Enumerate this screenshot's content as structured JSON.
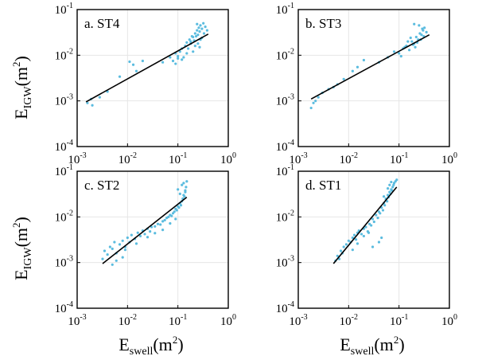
{
  "colors": {
    "points": "#5bbcdf",
    "fit_line": "#000000",
    "grid": "#e6e6e6",
    "frame": "#000000"
  },
  "axes": {
    "x_label": {
      "main": "E",
      "sub": "swell",
      "unit_open": "(m",
      "unit_sup": "2",
      "unit_close": ")"
    },
    "y_label": {
      "main": "E",
      "sub": "IGW",
      "unit_open": "(m",
      "unit_sup": "2",
      "unit_close": ")"
    },
    "x_ticks": [
      {
        "value": 0.001,
        "base": "10",
        "exp": "-3"
      },
      {
        "value": 0.01,
        "base": "10",
        "exp": "-2"
      },
      {
        "value": 0.1,
        "base": "10",
        "exp": "-1"
      },
      {
        "value": 1,
        "base": "10",
        "exp": "0"
      }
    ],
    "y_ticks": [
      {
        "value": 0.0001,
        "base": "10",
        "exp": "-4"
      },
      {
        "value": 0.001,
        "base": "10",
        "exp": "-3"
      },
      {
        "value": 0.01,
        "base": "10",
        "exp": "-2"
      },
      {
        "value": 0.1,
        "base": "10",
        "exp": "-1"
      }
    ]
  },
  "chart_data": [
    {
      "type": "scatter",
      "panel_label": "a. ST4",
      "xscale": "log",
      "yscale": "log",
      "xlim": [
        0.001,
        1
      ],
      "ylim": [
        0.0001,
        0.1
      ],
      "grid": true,
      "points": {
        "x": [
          0.0016,
          0.0019,
          0.002,
          0.0028,
          0.004,
          0.007,
          0.011,
          0.015,
          0.013,
          0.02,
          0.05,
          0.07,
          0.08,
          0.09,
          0.1,
          0.11,
          0.12,
          0.13,
          0.14,
          0.15,
          0.16,
          0.17,
          0.18,
          0.2,
          0.21,
          0.22,
          0.23,
          0.24,
          0.25,
          0.26,
          0.27,
          0.28,
          0.3,
          0.32,
          0.35,
          0.38,
          0.25,
          0.2,
          0.18,
          0.3,
          0.15,
          0.1,
          0.09,
          0.12,
          0.22,
          0.28,
          0.33,
          0.27,
          0.19,
          0.24
        ],
        "y": [
          0.0009,
          0.0011,
          0.0008,
          0.0012,
          0.0016,
          0.0034,
          0.0072,
          0.0045,
          0.0062,
          0.0075,
          0.007,
          0.009,
          0.0075,
          0.011,
          0.0095,
          0.012,
          0.014,
          0.009,
          0.016,
          0.019,
          0.014,
          0.022,
          0.018,
          0.025,
          0.021,
          0.03,
          0.026,
          0.035,
          0.028,
          0.04,
          0.033,
          0.045,
          0.038,
          0.05,
          0.042,
          0.035,
          0.018,
          0.012,
          0.02,
          0.024,
          0.011,
          0.0085,
          0.0065,
          0.008,
          0.016,
          0.022,
          0.03,
          0.015,
          0.026,
          0.048
        ]
      },
      "fit_line": {
        "x": [
          0.0015,
          0.4
        ],
        "y": [
          0.00095,
          0.029
        ]
      }
    },
    {
      "type": "scatter",
      "panel_label": "b. ST3",
      "xscale": "log",
      "yscale": "log",
      "xlim": [
        0.001,
        1
      ],
      "ylim": [
        0.0001,
        0.1
      ],
      "grid": true,
      "points": {
        "x": [
          0.0018,
          0.002,
          0.0022,
          0.0025,
          0.003,
          0.004,
          0.005,
          0.006,
          0.008,
          0.012,
          0.015,
          0.02,
          0.04,
          0.06,
          0.08,
          0.1,
          0.12,
          0.14,
          0.16,
          0.18,
          0.2,
          0.22,
          0.24,
          0.26,
          0.28,
          0.3,
          0.32,
          0.35,
          0.25,
          0.2,
          0.15,
          0.11,
          0.13,
          0.17,
          0.19,
          0.23,
          0.27,
          0.29,
          0.31,
          0.21
        ],
        "y": [
          0.0007,
          0.0009,
          0.001,
          0.0012,
          0.0015,
          0.0018,
          0.002,
          0.0023,
          0.003,
          0.0045,
          0.0055,
          0.0078,
          0.007,
          0.009,
          0.012,
          0.011,
          0.014,
          0.016,
          0.013,
          0.02,
          0.018,
          0.025,
          0.022,
          0.03,
          0.028,
          0.035,
          0.04,
          0.032,
          0.045,
          0.048,
          0.02,
          0.0095,
          0.015,
          0.024,
          0.017,
          0.019,
          0.022,
          0.038,
          0.026,
          0.015
        ]
      },
      "fit_line": {
        "x": [
          0.0018,
          0.4
        ],
        "y": [
          0.0011,
          0.028
        ]
      }
    },
    {
      "type": "scatter",
      "panel_label": "c. ST2",
      "xscale": "log",
      "yscale": "log",
      "xlim": [
        0.001,
        1
      ],
      "ylim": [
        0.0001,
        0.1
      ],
      "grid": true,
      "points": {
        "x": [
          0.0032,
          0.0035,
          0.004,
          0.0045,
          0.005,
          0.0055,
          0.006,
          0.007,
          0.008,
          0.009,
          0.01,
          0.011,
          0.012,
          0.014,
          0.016,
          0.018,
          0.02,
          0.022,
          0.025,
          0.028,
          0.03,
          0.035,
          0.04,
          0.045,
          0.05,
          0.055,
          0.06,
          0.065,
          0.07,
          0.075,
          0.08,
          0.085,
          0.09,
          0.095,
          0.1,
          0.105,
          0.11,
          0.115,
          0.12,
          0.125,
          0.13,
          0.135,
          0.14,
          0.145,
          0.15,
          0.1,
          0.12,
          0.13,
          0.11,
          0.14,
          0.006,
          0.009,
          0.015,
          0.025,
          0.035,
          0.05,
          0.07,
          0.09,
          0.005,
          0.008
        ],
        "y": [
          0.0012,
          0.0018,
          0.0015,
          0.0022,
          0.002,
          0.0028,
          0.0016,
          0.0025,
          0.003,
          0.0022,
          0.0035,
          0.0028,
          0.004,
          0.0033,
          0.0045,
          0.0038,
          0.005,
          0.0042,
          0.0055,
          0.0048,
          0.006,
          0.0062,
          0.007,
          0.0068,
          0.008,
          0.0085,
          0.0095,
          0.01,
          0.011,
          0.0105,
          0.012,
          0.013,
          0.015,
          0.014,
          0.017,
          0.016,
          0.02,
          0.018,
          0.022,
          0.025,
          0.03,
          0.028,
          0.035,
          0.045,
          0.06,
          0.04,
          0.05,
          0.055,
          0.032,
          0.038,
          0.0011,
          0.0019,
          0.0026,
          0.0036,
          0.0044,
          0.0052,
          0.0072,
          0.009,
          0.0009,
          0.0013
        ]
      },
      "fit_line": {
        "x": [
          0.0032,
          0.15
        ],
        "y": [
          0.00095,
          0.027
        ]
      }
    },
    {
      "type": "scatter",
      "panel_label": "d. ST1",
      "xscale": "log",
      "yscale": "log",
      "xlim": [
        0.001,
        1
      ],
      "ylim": [
        0.0001,
        0.1
      ],
      "grid": true,
      "points": {
        "x": [
          0.0055,
          0.006,
          0.0065,
          0.007,
          0.0075,
          0.008,
          0.009,
          0.01,
          0.011,
          0.012,
          0.013,
          0.014,
          0.015,
          0.016,
          0.018,
          0.02,
          0.022,
          0.024,
          0.026,
          0.028,
          0.03,
          0.032,
          0.035,
          0.038,
          0.04,
          0.042,
          0.045,
          0.048,
          0.05,
          0.052,
          0.055,
          0.058,
          0.06,
          0.062,
          0.065,
          0.068,
          0.07,
          0.072,
          0.075,
          0.078,
          0.08,
          0.085,
          0.09,
          0.05,
          0.06,
          0.065,
          0.07,
          0.055,
          0.045,
          0.04,
          0.03,
          0.025,
          0.02,
          0.015,
          0.012
        ],
        "y": [
          0.0011,
          0.0014,
          0.0012,
          0.0018,
          0.0016,
          0.0022,
          0.0025,
          0.003,
          0.0028,
          0.0035,
          0.004,
          0.0032,
          0.0045,
          0.005,
          0.0042,
          0.0055,
          0.006,
          0.0048,
          0.007,
          0.0065,
          0.009,
          0.0078,
          0.011,
          0.0095,
          0.013,
          0.012,
          0.016,
          0.014,
          0.02,
          0.018,
          0.025,
          0.022,
          0.03,
          0.027,
          0.035,
          0.032,
          0.04,
          0.038,
          0.045,
          0.05,
          0.055,
          0.06,
          0.065,
          0.028,
          0.042,
          0.05,
          0.058,
          0.024,
          0.0035,
          0.0028,
          0.0022,
          0.0045,
          0.0038,
          0.0026,
          0.0019
        ]
      },
      "fit_line": {
        "x": [
          0.005,
          0.09
        ],
        "y": [
          0.00095,
          0.045
        ]
      }
    }
  ]
}
